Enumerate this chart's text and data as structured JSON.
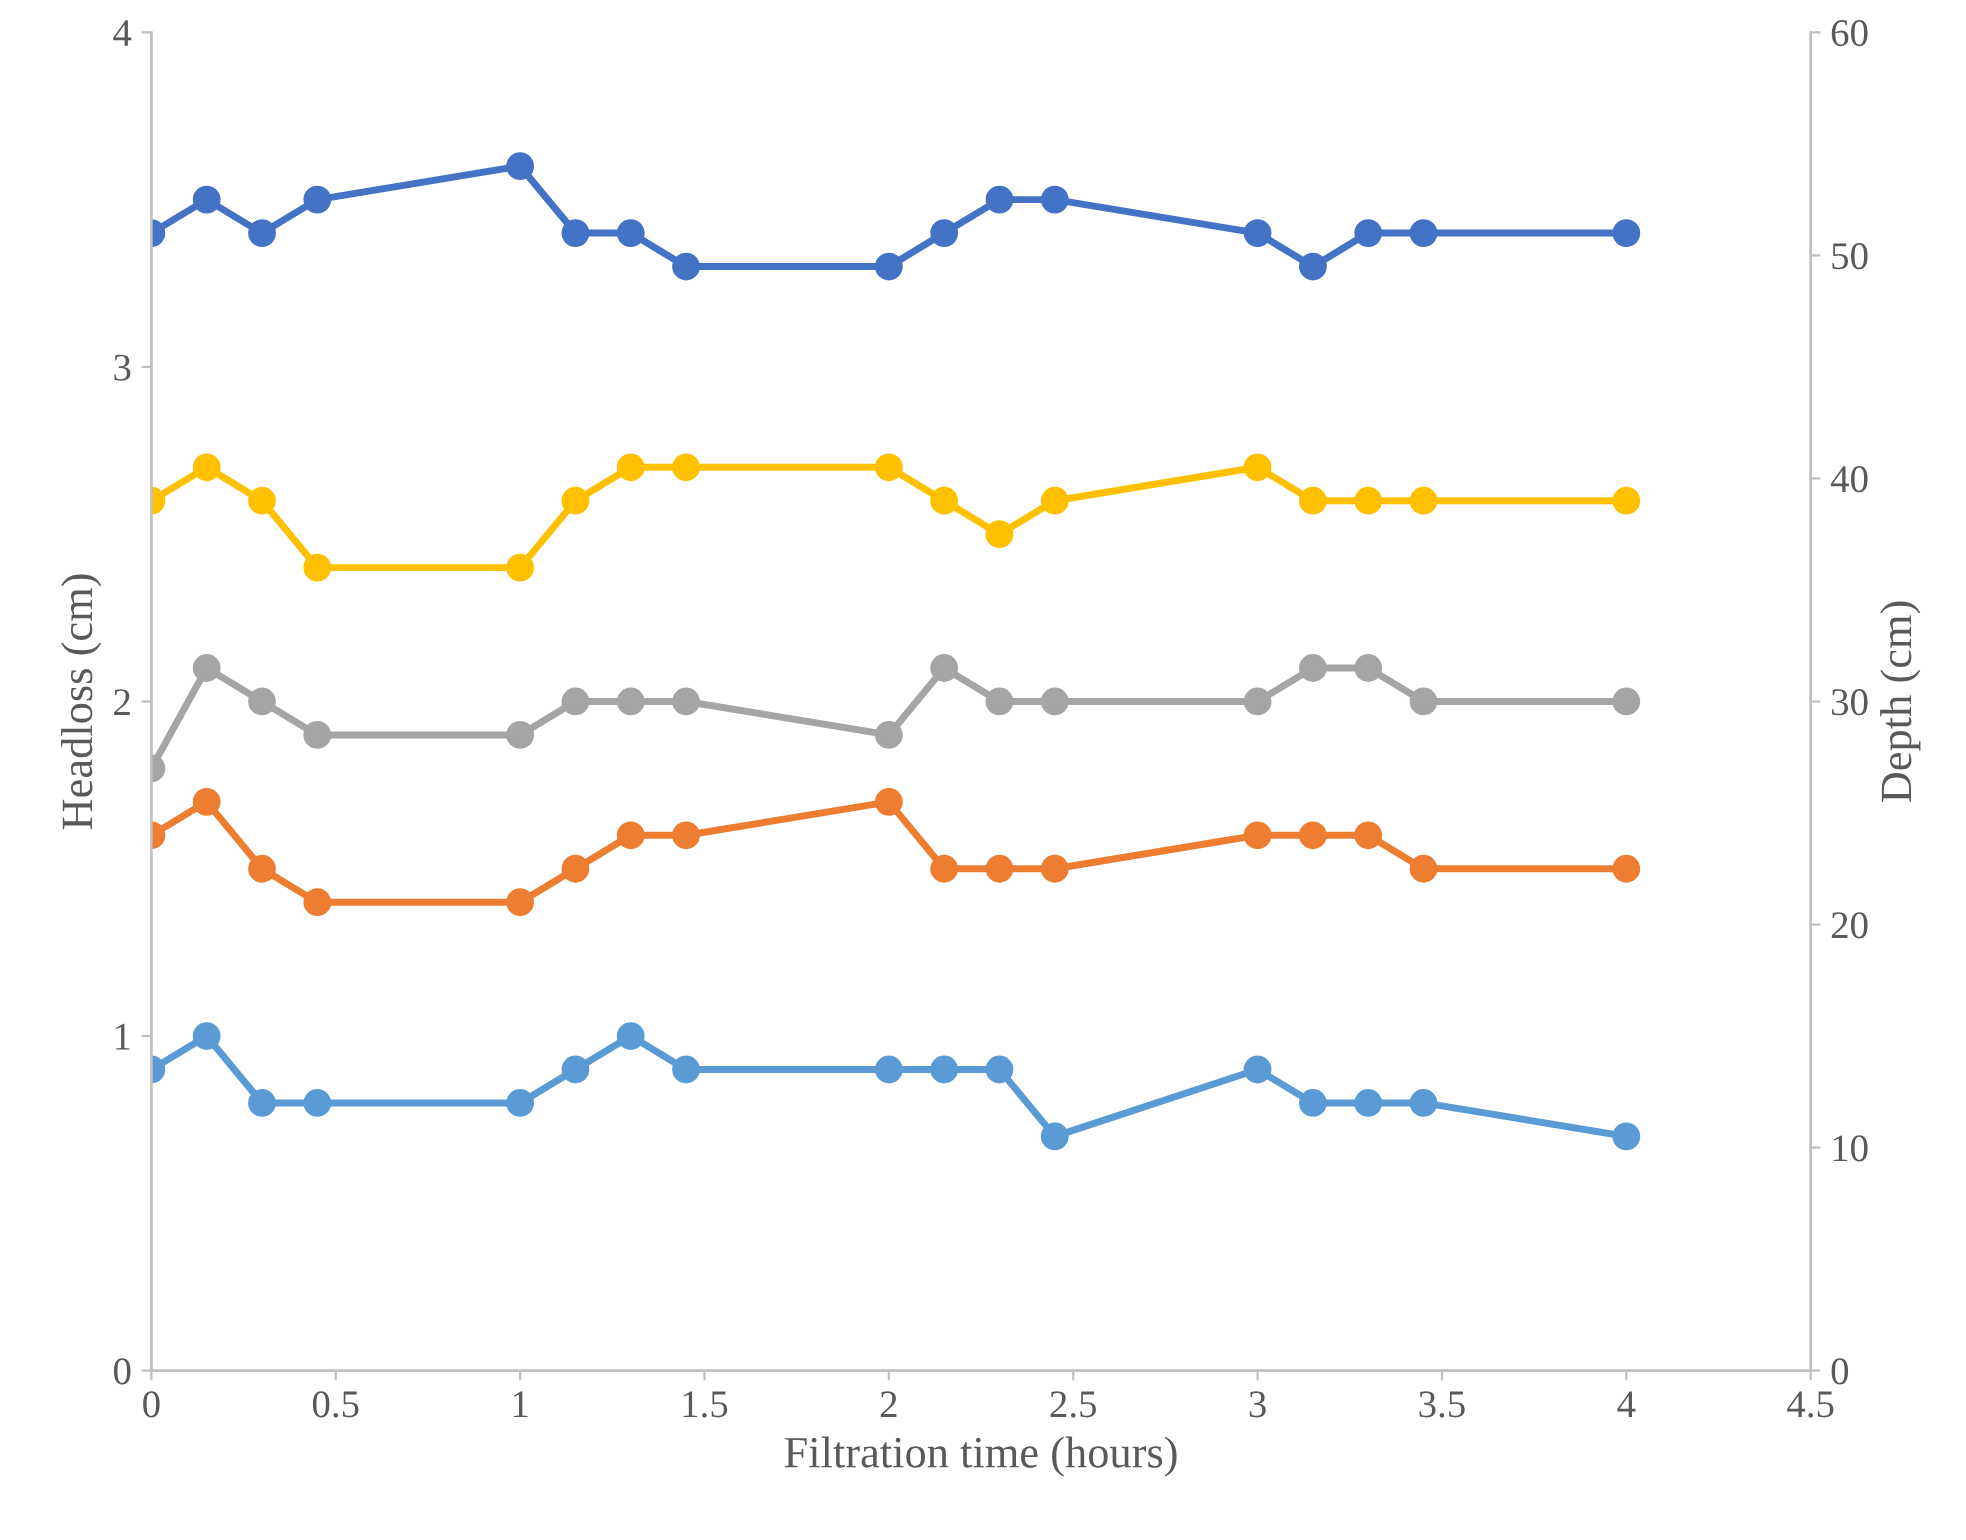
{
  "chart_data": {
    "type": "line",
    "xlabel": "Filtration time (hours)",
    "ylabel": "Headloss (cm)",
    "y2label": "Depth (cm)",
    "x": [
      0,
      0.15,
      0.3,
      0.45,
      1,
      1.15,
      1.3,
      1.45,
      2,
      2.15,
      2.3,
      2.45,
      3,
      3.15,
      3.3,
      3.45,
      4
    ],
    "series": [
      {
        "color": "#4472c4",
        "values": [
          3.4,
          3.5,
          3.4,
          3.5,
          3.6,
          3.4,
          3.4,
          3.3,
          3.3,
          3.4,
          3.5,
          3.5,
          3.4,
          3.3,
          3.4,
          3.4,
          3.4
        ]
      },
      {
        "color": "#ffc000",
        "values": [
          2.6,
          2.7,
          2.6,
          2.4,
          2.4,
          2.6,
          2.7,
          2.7,
          2.7,
          2.6,
          2.5,
          2.6,
          2.7,
          2.6,
          2.6,
          2.6,
          2.6
        ]
      },
      {
        "color": "#a5a5a5",
        "values": [
          1.8,
          2.1,
          2.0,
          1.9,
          1.9,
          2.0,
          2.0,
          2.0,
          1.9,
          2.1,
          2.0,
          2.0,
          2.0,
          2.1,
          2.1,
          2.0,
          2.0
        ]
      },
      {
        "color": "#ed7d31",
        "values": [
          1.6,
          1.7,
          1.5,
          1.4,
          1.4,
          1.5,
          1.6,
          1.6,
          1.7,
          1.5,
          1.5,
          1.5,
          1.6,
          1.6,
          1.6,
          1.5,
          1.5
        ]
      },
      {
        "color": "#5b9bd5",
        "values": [
          0.9,
          1.0,
          0.8,
          0.8,
          0.8,
          0.9,
          1.0,
          0.9,
          0.9,
          0.9,
          0.9,
          0.7,
          0.9,
          0.8,
          0.8,
          0.8,
          0.7
        ]
      }
    ],
    "xlim": [
      0,
      4.5
    ],
    "xticks": [
      0,
      0.5,
      1,
      1.5,
      2,
      2.5,
      3,
      3.5,
      4,
      4.5
    ],
    "ylim": [
      0,
      4
    ],
    "yticks": [
      0,
      1,
      2,
      3,
      4
    ],
    "y2lim": [
      0,
      60
    ],
    "y2ticks": [
      0,
      10,
      20,
      30,
      40,
      50,
      60
    ],
    "marker": "circle",
    "line_style": "solid",
    "grid": false,
    "legend": false
  }
}
